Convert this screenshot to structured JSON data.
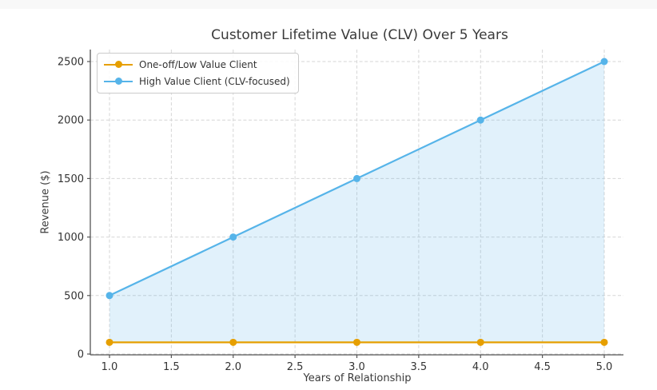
{
  "window": {
    "background": "#ffffff",
    "top_strip_color": "#f8f8f8"
  },
  "chart_data": {
    "type": "line",
    "title": "Customer Lifetime Value (CLV) Over 5 Years",
    "xlabel": "Years of Relationship",
    "ylabel": "Revenue ($)",
    "x": [
      1,
      2,
      3,
      4,
      5
    ],
    "series": [
      {
        "name": "One-off/Low Value Client",
        "values": [
          100,
          100,
          100,
          100,
          100
        ],
        "color": "#E69F00",
        "marker": "circle"
      },
      {
        "name": "High Value Client (CLV-focused)",
        "values": [
          500,
          1000,
          1500,
          2000,
          2500
        ],
        "color": "#56B4E9",
        "marker": "circle"
      }
    ],
    "area_fill": {
      "series_index": 1,
      "baseline": 100,
      "color": "#56B4E9",
      "opacity": 0.18
    },
    "xticks": {
      "values": [
        1,
        1.5,
        2,
        2.5,
        3,
        3.5,
        4,
        4.5,
        5
      ],
      "labels": [
        "1.0",
        "1.5",
        "2.0",
        "2.5",
        "3.0",
        "3.5",
        "4.0",
        "4.5",
        "5.0"
      ]
    },
    "yticks": {
      "values": [
        0,
        500,
        1000,
        1500,
        2000,
        2500
      ],
      "labels": [
        "0",
        "500",
        "1000",
        "1500",
        "2000",
        "2500"
      ]
    },
    "xlim": [
      0.85,
      5.16
    ],
    "ylim": [
      0,
      2600
    ],
    "grid": {
      "show": true,
      "style": "dashed",
      "color": "#d6d6d6"
    },
    "legend": {
      "position": "upper left",
      "entries": [
        "One-off/Low Value Client",
        "High Value Client (CLV-focused)"
      ]
    },
    "axis": {
      "spine_color": "#555555",
      "tick_color": "#555555",
      "label_color": "#3a3a3a",
      "tick_label_color": "#333333"
    }
  }
}
